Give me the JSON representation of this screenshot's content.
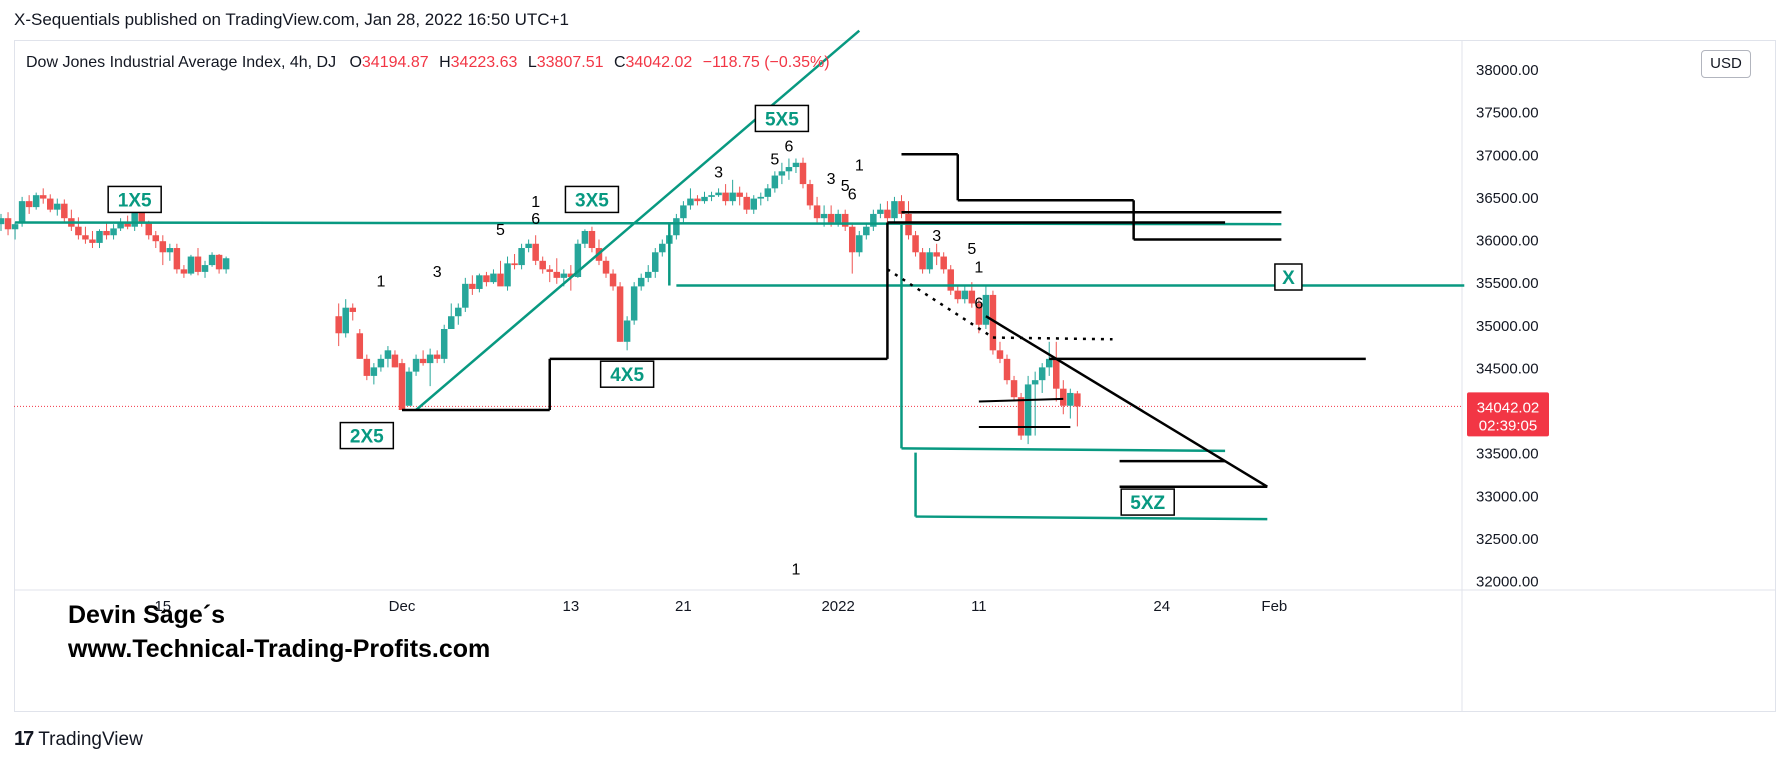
{
  "header": {
    "published_by": "X-Sequentials published on TradingView.com, Jan 28, 2022 16:50 UTC+1"
  },
  "symbol": {
    "name": "Dow Jones Industrial Average Index, 4h, DJ",
    "o_label": "O",
    "o_value": "34194.87",
    "h_label": "H",
    "h_value": "34223.63",
    "l_label": "L",
    "l_value": "33807.51",
    "c_label": "C",
    "c_value": "34042.02",
    "change": "−118.75 (−0.35%)"
  },
  "currency_badge": "USD",
  "price_badge": {
    "price": "34042.02",
    "countdown": "02:39:05"
  },
  "watermark": {
    "line1": "Devin Sage´s",
    "line2": "www.Technical-Trading-Profits.com"
  },
  "footer": {
    "brand": "TradingView",
    "logo_text": "17"
  },
  "colors": {
    "up": "#26a69a",
    "down": "#ef5350",
    "accent": "#089981",
    "price_badge": "#f23645",
    "black": "#000000"
  },
  "chart_data": {
    "type": "candlestick",
    "title": "Dow Jones Industrial Average Index, 4h, DJ",
    "y_axis": {
      "min": 32000,
      "max": 38000,
      "ticks": [
        "38000.00",
        "37500.00",
        "37000.00",
        "36500.00",
        "36000.00",
        "35500.00",
        "35000.00",
        "34500.00",
        "34000.00",
        "33500.00",
        "33000.00",
        "32500.00",
        "32000.00"
      ]
    },
    "x_axis": {
      "ticks": [
        {
          "label": "15",
          "day": -17
        },
        {
          "label": "Dec",
          "day": 0
        },
        {
          "label": "13",
          "day": 12
        },
        {
          "label": "21",
          "day": 20
        },
        {
          "label": "2022",
          "day": 31
        },
        {
          "label": "11",
          "day": 41
        },
        {
          "label": "24",
          "day": 54
        },
        {
          "label": "Feb",
          "day": 62
        }
      ]
    },
    "last_price": 34042.02,
    "candles": [
      [
        -29.5,
        36150,
        36200,
        35900,
        35950
      ],
      [
        -29,
        35950,
        36250,
        35900,
        36180
      ],
      [
        -28.5,
        36180,
        36300,
        36100,
        36250
      ],
      [
        -28,
        36250,
        36320,
        36050,
        36120
      ],
      [
        -27.5,
        36120,
        36200,
        36000,
        36180
      ],
      [
        -27,
        36200,
        36500,
        36150,
        36450
      ],
      [
        -26.5,
        36450,
        36520,
        36300,
        36380
      ],
      [
        -26,
        36380,
        36550,
        36350,
        36520
      ],
      [
        -25.5,
        36520,
        36600,
        36420,
        36480
      ],
      [
        -25,
        36480,
        36530,
        36320,
        36350
      ],
      [
        -24.5,
        36350,
        36480,
        36280,
        36420
      ],
      [
        -24,
        36420,
        36470,
        36200,
        36250
      ],
      [
        -23.5,
        36250,
        36350,
        36100,
        36150
      ],
      [
        -23,
        36150,
        36260,
        36000,
        36050
      ],
      [
        -22.5,
        36050,
        36150,
        35950,
        36000
      ],
      [
        -22,
        36000,
        36100,
        35900,
        35960
      ],
      [
        -21.5,
        35960,
        36120,
        35900,
        36100
      ],
      [
        -21,
        36100,
        36200,
        36000,
        36050
      ],
      [
        -20.5,
        36050,
        36180,
        36000,
        36130
      ],
      [
        -20,
        36130,
        36250,
        36100,
        36200
      ],
      [
        -19.5,
        36200,
        36280,
        36120,
        36150
      ],
      [
        -19,
        36150,
        36380,
        36100,
        36350
      ],
      [
        -18.5,
        36350,
        36400,
        36150,
        36200
      ],
      [
        -18,
        36200,
        36220,
        36000,
        36050
      ],
      [
        -17.5,
        36050,
        36100,
        35900,
        35980
      ],
      [
        -17,
        35980,
        36050,
        35700,
        35850
      ],
      [
        -16.5,
        35850,
        35950,
        35750,
        35900
      ],
      [
        -16,
        35900,
        35950,
        35600,
        35650
      ],
      [
        -15.5,
        35650,
        35700,
        35550,
        35600
      ],
      [
        -15,
        35600,
        35820,
        35580,
        35800
      ],
      [
        -14.5,
        35800,
        35900,
        35580,
        35620
      ],
      [
        -14,
        35620,
        35750,
        35550,
        35700
      ],
      [
        -13.5,
        35700,
        35850,
        35680,
        35820
      ],
      [
        -13,
        35820,
        35830,
        35600,
        35650
      ],
      [
        -12.5,
        35650,
        35800,
        35600,
        35780
      ],
      [
        -4.5,
        35100,
        35250,
        34750,
        34900
      ],
      [
        -4,
        34900,
        35300,
        34850,
        35200
      ],
      [
        -3.5,
        35200,
        35250,
        35050,
        35150
      ],
      [
        -3,
        34900,
        34950,
        34600,
        34600
      ],
      [
        -2.5,
        34600,
        34650,
        34350,
        34400
      ],
      [
        -2,
        34400,
        34550,
        34300,
        34500
      ],
      [
        -1.5,
        34500,
        34650,
        34450,
        34600
      ],
      [
        -1,
        34600,
        34750,
        34500,
        34700
      ],
      [
        -0.5,
        34650,
        34700,
        34500,
        34500
      ],
      [
        0,
        34550,
        34600,
        34000,
        34000
      ],
      [
        0.5,
        34050,
        34500,
        34050,
        34450
      ],
      [
        1,
        34450,
        34650,
        34400,
        34600
      ],
      [
        1.5,
        34600,
        34700,
        34520,
        34550
      ],
      [
        2,
        34550,
        34720,
        34280,
        34650
      ],
      [
        2.5,
        34650,
        34700,
        34550,
        34600
      ],
      [
        3,
        34600,
        35000,
        34550,
        34950
      ],
      [
        3.5,
        34950,
        35250,
        34950,
        35100
      ],
      [
        4,
        35100,
        35250,
        35000,
        35200
      ],
      [
        4.5,
        35200,
        35550,
        35150,
        35480
      ],
      [
        5,
        35480,
        35580,
        35350,
        35420
      ],
      [
        5.5,
        35420,
        35600,
        35380,
        35580
      ],
      [
        6,
        35580,
        35620,
        35450,
        35500
      ],
      [
        6.5,
        35500,
        35650,
        35480,
        35600
      ],
      [
        7,
        35600,
        35750,
        35500,
        35450
      ],
      [
        7.5,
        35450,
        35800,
        35400,
        35720
      ],
      [
        8,
        35720,
        35830,
        35650,
        35700
      ],
      [
        8.5,
        35700,
        35950,
        35650,
        35900
      ],
      [
        9,
        35900,
        36000,
        35850,
        35950
      ],
      [
        9.5,
        35950,
        36050,
        35700,
        35750
      ],
      [
        10,
        35750,
        35800,
        35600,
        35650
      ],
      [
        10.5,
        35650,
        35700,
        35500,
        35620
      ],
      [
        11,
        35620,
        35780,
        35480,
        35550
      ],
      [
        11.5,
        35550,
        35650,
        35450,
        35600
      ],
      [
        12,
        35600,
        35700,
        35400,
        35560
      ],
      [
        12.5,
        35560,
        36000,
        35550,
        35950
      ],
      [
        13,
        35950,
        36120,
        35900,
        36100
      ],
      [
        13.5,
        36100,
        36150,
        35850,
        35900
      ],
      [
        14,
        35900,
        36000,
        35700,
        35750
      ],
      [
        14.5,
        35750,
        35800,
        35550,
        35600
      ],
      [
        15,
        35600,
        35650,
        35400,
        35450
      ],
      [
        15.5,
        35450,
        35500,
        34800,
        34800
      ],
      [
        16,
        34800,
        35100,
        34700,
        35050
      ],
      [
        16.5,
        35050,
        35500,
        35000,
        35450
      ],
      [
        17,
        35450,
        35600,
        35400,
        35550
      ],
      [
        17.5,
        35550,
        35700,
        35500,
        35620
      ],
      [
        18,
        35620,
        35900,
        35550,
        35850
      ],
      [
        18.5,
        35850,
        36000,
        35800,
        35950
      ],
      [
        19,
        35950,
        36100,
        35900,
        36050
      ],
      [
        19.5,
        36050,
        36300,
        36000,
        36250
      ],
      [
        20,
        36250,
        36450,
        36200,
        36400
      ],
      [
        20.5,
        36400,
        36600,
        36350,
        36480
      ],
      [
        21,
        36480,
        36520,
        36400,
        36450
      ],
      [
        21.5,
        36450,
        36560,
        36420,
        36500
      ],
      [
        22,
        36500,
        36560,
        36450,
        36520
      ],
      [
        22.5,
        36520,
        36600,
        36500,
        36550
      ],
      [
        23,
        36550,
        36650,
        36400,
        36450
      ],
      [
        23.5,
        36450,
        36700,
        36400,
        36550
      ],
      [
        24,
        36550,
        36620,
        36400,
        36500
      ],
      [
        24.5,
        36500,
        36550,
        36300,
        36350
      ],
      [
        25,
        36350,
        36520,
        36300,
        36480
      ],
      [
        25.5,
        36480,
        36550,
        36400,
        36500
      ],
      [
        26,
        36500,
        36650,
        36450,
        36600
      ],
      [
        26.5,
        36600,
        36800,
        36550,
        36750
      ],
      [
        27,
        36750,
        36900,
        36650,
        36800
      ],
      [
        27.5,
        36800,
        36950,
        36700,
        36850
      ],
      [
        28,
        36850,
        36950,
        36780,
        36900
      ],
      [
        28.5,
        36900,
        36960,
        36600,
        36650
      ],
      [
        29,
        36650,
        36700,
        36350,
        36400
      ],
      [
        29.5,
        36400,
        36500,
        36200,
        36250
      ],
      [
        30,
        36250,
        36400,
        36150,
        36300
      ],
      [
        30.5,
        36300,
        36400,
        36150,
        36200
      ],
      [
        31,
        36200,
        36350,
        36150,
        36300
      ],
      [
        31.5,
        36300,
        36350,
        36100,
        36150
      ],
      [
        32,
        36150,
        36200,
        35600,
        35850
      ],
      [
        32.5,
        35850,
        36100,
        35800,
        36050
      ],
      [
        33,
        36050,
        36200,
        36000,
        36150
      ],
      [
        33.5,
        36150,
        36350,
        36100,
        36300
      ],
      [
        34,
        36300,
        36420,
        36250,
        36350
      ],
      [
        34.5,
        36350,
        36450,
        36200,
        36250
      ],
      [
        35,
        36250,
        36500,
        36200,
        36450
      ],
      [
        35.5,
        36450,
        36520,
        36250,
        36300
      ],
      [
        36,
        36300,
        36450,
        36000,
        36050
      ],
      [
        36.5,
        36050,
        36100,
        35800,
        35850
      ],
      [
        37,
        35850,
        35900,
        35600,
        35650
      ],
      [
        37.5,
        35650,
        35900,
        35600,
        35850
      ],
      [
        38,
        35850,
        35950,
        35700,
        35800
      ],
      [
        38.5,
        35800,
        35850,
        35600,
        35650
      ],
      [
        39,
        35650,
        35700,
        35350,
        35400
      ],
      [
        39.5,
        35400,
        35450,
        35250,
        35300
      ],
      [
        40,
        35300,
        35450,
        35250,
        35400
      ],
      [
        40.5,
        35400,
        35500,
        35200,
        35250
      ],
      [
        41,
        35250,
        35300,
        34900,
        35000
      ],
      [
        41.5,
        35000,
        35450,
        34950,
        35350
      ],
      [
        42,
        35350,
        35400,
        34650,
        34700
      ],
      [
        42.5,
        34700,
        34800,
        34550,
        34600
      ],
      [
        43,
        34600,
        34650,
        34300,
        34350
      ],
      [
        43.5,
        34350,
        34400,
        34100,
        34150
      ],
      [
        44,
        34150,
        34200,
        33650,
        33700
      ],
      [
        44.5,
        33700,
        34400,
        33600,
        34300
      ],
      [
        45,
        34300,
        34450,
        33700,
        34350
      ],
      [
        45.5,
        34350,
        34550,
        34200,
        34500
      ],
      [
        46,
        34500,
        34800,
        34400,
        34600
      ],
      [
        46.5,
        34600,
        34800,
        34100,
        34250
      ],
      [
        47,
        34250,
        34350,
        33950,
        34050
      ],
      [
        47.5,
        34050,
        34250,
        33900,
        34200
      ],
      [
        48,
        34194.87,
        34223.63,
        33807.51,
        34042.02
      ]
    ]
  },
  "annotations": {
    "boxed": [
      {
        "text": "1X5",
        "day": -19,
        "price": 36470
      },
      {
        "text": "2X5",
        "day": -2.5,
        "price": 33700
      },
      {
        "text": "3X5",
        "day": 13.5,
        "price": 36470
      },
      {
        "text": "4X5",
        "day": 16,
        "price": 34420
      },
      {
        "text": "5X5",
        "day": 27,
        "price": 37420
      },
      {
        "text": "5XZ",
        "day": 53,
        "price": 32920
      },
      {
        "text": "X",
        "day": 63,
        "price": 35560
      }
    ],
    "counts": [
      {
        "text": "1",
        "day": -1.5,
        "price": 35450
      },
      {
        "text": "3",
        "day": 2.5,
        "price": 35560
      },
      {
        "text": "5",
        "day": 7,
        "price": 36050
      },
      {
        "text": "1",
        "day": 9.5,
        "price": 36380
      },
      {
        "text": "6",
        "day": 9.5,
        "price": 36180
      },
      {
        "text": "3",
        "day": 22.5,
        "price": 36730
      },
      {
        "text": "5",
        "day": 26.5,
        "price": 36880
      },
      {
        "text": "6",
        "day": 27.5,
        "price": 37030
      },
      {
        "text": "3",
        "day": 30.5,
        "price": 36650
      },
      {
        "text": "5",
        "day": 31.5,
        "price": 36570
      },
      {
        "text": "6",
        "day": 32,
        "price": 36470
      },
      {
        "text": "1",
        "day": 32.5,
        "price": 36810
      },
      {
        "text": "3",
        "day": 38,
        "price": 35980
      },
      {
        "text": "5",
        "day": 40.5,
        "price": 35830
      },
      {
        "text": "1",
        "day": 41,
        "price": 35610
      },
      {
        "text": "6",
        "day": 41,
        "price": 35190
      },
      {
        "text": "1",
        "day": 28,
        "price": 32070
      }
    ]
  }
}
